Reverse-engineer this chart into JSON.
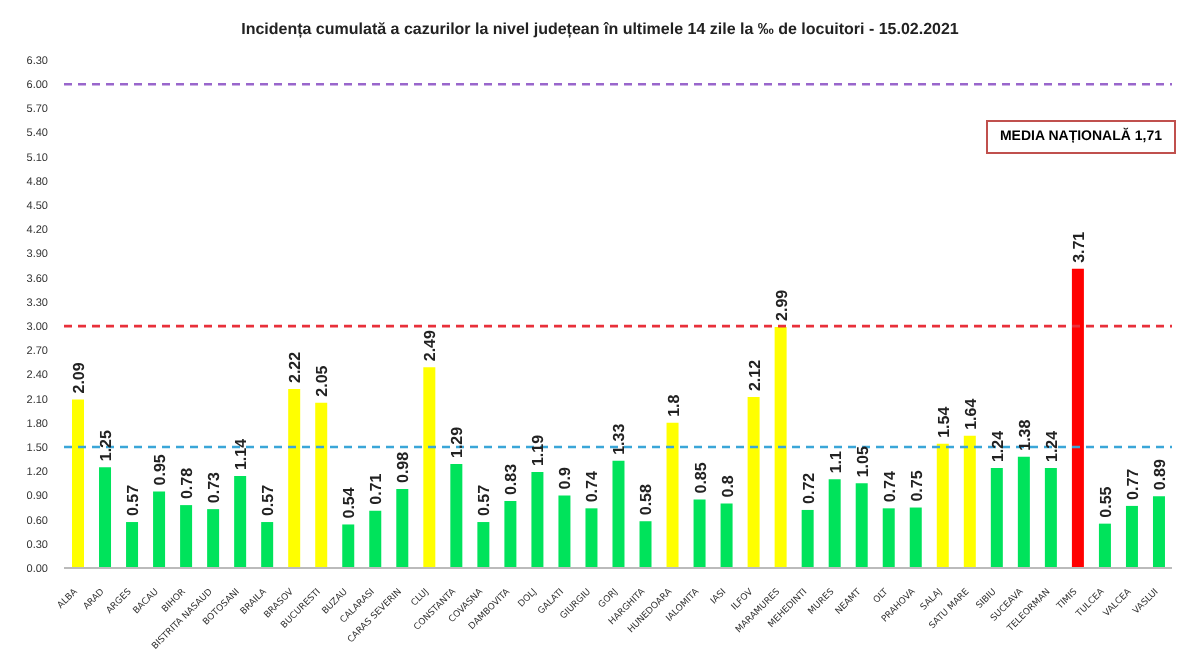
{
  "chart_data": {
    "type": "bar",
    "title": "Incidența cumulată a cazurilor la nivel județean în ultimele 14 zile la ‰ de locuitori - 15.02.2021",
    "categories": [
      "ALBA",
      "ARAD",
      "ARGES",
      "BACAU",
      "BIHOR",
      "BISTRITA NASAUD",
      "BOTOSANI",
      "BRAILA",
      "BRASOV",
      "BUCURESTI",
      "BUZAU",
      "CALARASI",
      "CARAS SEVERIN",
      "CLUJ",
      "CONSTANTA",
      "COVASNA",
      "DAMBOVITA",
      "DOLJ",
      "GALATI",
      "GIURGIU",
      "GORJ",
      "HARGHITA",
      "HUNEDOARA",
      "IALOMITA",
      "IASI",
      "ILFOV",
      "MARAMURES",
      "MEHEDINTI",
      "MURES",
      "NEAMT",
      "OLT",
      "PRAHOVA",
      "SALAJ",
      "SATU MARE",
      "SIBIU",
      "SUCEAVA",
      "TELEORMAN",
      "TIMIS",
      "TULCEA",
      "VALCEA",
      "VASLUI"
    ],
    "values": [
      2.09,
      1.25,
      0.57,
      0.95,
      0.78,
      0.73,
      1.14,
      0.57,
      2.22,
      2.05,
      0.54,
      0.71,
      0.98,
      2.49,
      1.29,
      0.57,
      0.83,
      1.19,
      0.9,
      0.74,
      1.33,
      0.58,
      1.8,
      0.85,
      0.8,
      2.12,
      2.99,
      0.72,
      1.1,
      1.05,
      0.74,
      0.75,
      1.54,
      1.64,
      1.24,
      1.38,
      1.24,
      3.71,
      0.55,
      0.77,
      0.89
    ],
    "colors": [
      "#ffff00",
      "#00e35b",
      "#00e35b",
      "#00e35b",
      "#00e35b",
      "#00e35b",
      "#00e35b",
      "#00e35b",
      "#ffff00",
      "#ffff00",
      "#00e35b",
      "#00e35b",
      "#00e35b",
      "#ffff00",
      "#00e35b",
      "#00e35b",
      "#00e35b",
      "#00e35b",
      "#00e35b",
      "#00e35b",
      "#00e35b",
      "#00e35b",
      "#ffff00",
      "#00e35b",
      "#00e35b",
      "#ffff00",
      "#ffff00",
      "#00e35b",
      "#00e35b",
      "#00e35b",
      "#00e35b",
      "#00e35b",
      "#ffff00",
      "#ffff00",
      "#00e35b",
      "#00e35b",
      "#00e35b",
      "#ff0000",
      "#00e35b",
      "#00e35b",
      "#00e35b"
    ],
    "data_labels": true,
    "ylim": [
      0,
      6.3
    ],
    "yticks": [
      {
        "value": 0,
        "label": "0.00"
      },
      {
        "value": 0.3,
        "label": "0.30"
      },
      {
        "value": 0.6,
        "label": "0.60"
      },
      {
        "value": 0.9,
        "label": "0.90"
      },
      {
        "value": 1.2,
        "label": "1.20"
      },
      {
        "value": 1.5,
        "label": "1.50"
      },
      {
        "value": 1.8,
        "label": "1.80"
      },
      {
        "value": 2.1,
        "label": "2.10"
      },
      {
        "value": 2.4,
        "label": "2.40"
      },
      {
        "value": 2.7,
        "label": "2.70"
      },
      {
        "value": 3,
        "label": "3.00"
      },
      {
        "value": 3.3,
        "label": "3.30"
      },
      {
        "value": 3.6,
        "label": "3.60"
      },
      {
        "value": 3.9,
        "label": "3.90"
      },
      {
        "value": 4.2,
        "label": "4.20"
      },
      {
        "value": 4.5,
        "label": "4.50"
      },
      {
        "value": 4.8,
        "label": "4.80"
      },
      {
        "value": 5.1,
        "label": "5.10"
      },
      {
        "value": 5.4,
        "label": "5.40"
      },
      {
        "value": 5.7,
        "label": "5.70"
      },
      {
        "value": 6,
        "label": "6.00"
      },
      {
        "value": 6.3,
        "label": "6.30"
      }
    ],
    "ref_lines": [
      {
        "axis": "y",
        "value": 6,
        "color": "#9966cc",
        "line_style": "dashed"
      },
      {
        "axis": "y",
        "value": 3,
        "color": "#e8303a",
        "line_style": "dashed"
      },
      {
        "axis": "y",
        "value": 1.5,
        "color": "#3aa6d8",
        "line_style": "dashed"
      }
    ],
    "annotations": [
      "MEDIA NAȚIONALĂ 1,71"
    ],
    "grid": false
  }
}
